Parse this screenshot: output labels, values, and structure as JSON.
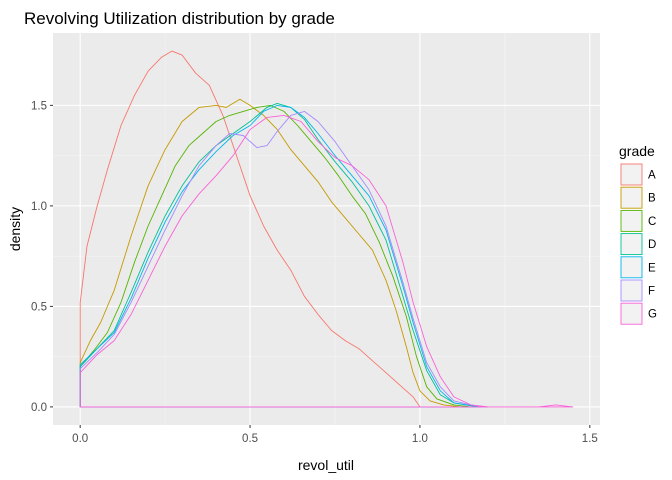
{
  "chart_data": {
    "type": "line",
    "title": "Revolving Utilization distribution by grade",
    "xlabel": "revol_util",
    "ylabel": "density",
    "xlim": [
      -0.08,
      1.53
    ],
    "ylim": [
      -0.09,
      1.86
    ],
    "x_ticks": [
      "0.0",
      "0.5",
      "1.0",
      "1.5"
    ],
    "y_ticks": [
      "0.0",
      "0.5",
      "1.0",
      "1.5"
    ],
    "grid": true,
    "legend": {
      "title": "grade",
      "position": "right"
    },
    "series": [
      {
        "name": "A",
        "color": "#F8766D",
        "points": [
          [
            0,
            0.52
          ],
          [
            0.02,
            0.8
          ],
          [
            0.05,
            1.0
          ],
          [
            0.08,
            1.18
          ],
          [
            0.12,
            1.4
          ],
          [
            0.16,
            1.55
          ],
          [
            0.2,
            1.67
          ],
          [
            0.24,
            1.74
          ],
          [
            0.27,
            1.77
          ],
          [
            0.3,
            1.75
          ],
          [
            0.34,
            1.66
          ],
          [
            0.38,
            1.6
          ],
          [
            0.42,
            1.45
          ],
          [
            0.46,
            1.25
          ],
          [
            0.5,
            1.05
          ],
          [
            0.54,
            0.9
          ],
          [
            0.58,
            0.78
          ],
          [
            0.62,
            0.68
          ],
          [
            0.66,
            0.55
          ],
          [
            0.7,
            0.46
          ],
          [
            0.74,
            0.38
          ],
          [
            0.78,
            0.33
          ],
          [
            0.82,
            0.29
          ],
          [
            0.86,
            0.23
          ],
          [
            0.9,
            0.17
          ],
          [
            0.94,
            0.11
          ],
          [
            0.98,
            0.05
          ],
          [
            1.0,
            0.0
          ]
        ]
      },
      {
        "name": "B",
        "color": "#C49A00",
        "points": [
          [
            0,
            0.22
          ],
          [
            0.03,
            0.33
          ],
          [
            0.06,
            0.42
          ],
          [
            0.1,
            0.58
          ],
          [
            0.15,
            0.85
          ],
          [
            0.2,
            1.1
          ],
          [
            0.25,
            1.28
          ],
          [
            0.3,
            1.42
          ],
          [
            0.35,
            1.49
          ],
          [
            0.4,
            1.5
          ],
          [
            0.43,
            1.49
          ],
          [
            0.47,
            1.53
          ],
          [
            0.5,
            1.5
          ],
          [
            0.54,
            1.45
          ],
          [
            0.58,
            1.38
          ],
          [
            0.62,
            1.28
          ],
          [
            0.66,
            1.2
          ],
          [
            0.7,
            1.12
          ],
          [
            0.74,
            1.02
          ],
          [
            0.78,
            0.94
          ],
          [
            0.82,
            0.86
          ],
          [
            0.86,
            0.78
          ],
          [
            0.9,
            0.63
          ],
          [
            0.93,
            0.48
          ],
          [
            0.96,
            0.3
          ],
          [
            0.98,
            0.17
          ],
          [
            1.0,
            0.08
          ],
          [
            1.03,
            0.03
          ],
          [
            1.07,
            0.01
          ],
          [
            1.12,
            0.0
          ]
        ]
      },
      {
        "name": "C",
        "color": "#53B400",
        "points": [
          [
            0,
            0.2
          ],
          [
            0.04,
            0.28
          ],
          [
            0.08,
            0.37
          ],
          [
            0.12,
            0.52
          ],
          [
            0.16,
            0.72
          ],
          [
            0.2,
            0.9
          ],
          [
            0.24,
            1.05
          ],
          [
            0.28,
            1.2
          ],
          [
            0.32,
            1.3
          ],
          [
            0.36,
            1.36
          ],
          [
            0.4,
            1.42
          ],
          [
            0.44,
            1.45
          ],
          [
            0.48,
            1.47
          ],
          [
            0.52,
            1.49
          ],
          [
            0.56,
            1.5
          ],
          [
            0.6,
            1.47
          ],
          [
            0.64,
            1.4
          ],
          [
            0.68,
            1.32
          ],
          [
            0.72,
            1.24
          ],
          [
            0.76,
            1.15
          ],
          [
            0.8,
            1.05
          ],
          [
            0.84,
            0.96
          ],
          [
            0.88,
            0.82
          ],
          [
            0.92,
            0.65
          ],
          [
            0.96,
            0.45
          ],
          [
            0.99,
            0.25
          ],
          [
            1.02,
            0.1
          ],
          [
            1.05,
            0.04
          ],
          [
            1.1,
            0.01
          ],
          [
            1.15,
            0.0
          ]
        ]
      },
      {
        "name": "D",
        "color": "#00C094",
        "points": [
          [
            0,
            0.2
          ],
          [
            0.05,
            0.29
          ],
          [
            0.1,
            0.38
          ],
          [
            0.15,
            0.57
          ],
          [
            0.2,
            0.77
          ],
          [
            0.25,
            0.95
          ],
          [
            0.3,
            1.1
          ],
          [
            0.35,
            1.22
          ],
          [
            0.4,
            1.3
          ],
          [
            0.45,
            1.36
          ],
          [
            0.5,
            1.42
          ],
          [
            0.55,
            1.49
          ],
          [
            0.58,
            1.51
          ],
          [
            0.62,
            1.49
          ],
          [
            0.66,
            1.43
          ],
          [
            0.7,
            1.33
          ],
          [
            0.75,
            1.22
          ],
          [
            0.8,
            1.12
          ],
          [
            0.85,
            1.0
          ],
          [
            0.9,
            0.83
          ],
          [
            0.95,
            0.55
          ],
          [
            0.98,
            0.38
          ],
          [
            1.02,
            0.18
          ],
          [
            1.06,
            0.06
          ],
          [
            1.1,
            0.02
          ],
          [
            1.17,
            0.0
          ]
        ]
      },
      {
        "name": "E",
        "color": "#00B6EB",
        "points": [
          [
            0,
            0.21
          ],
          [
            0.05,
            0.29
          ],
          [
            0.1,
            0.37
          ],
          [
            0.15,
            0.54
          ],
          [
            0.2,
            0.74
          ],
          [
            0.25,
            0.92
          ],
          [
            0.3,
            1.07
          ],
          [
            0.35,
            1.18
          ],
          [
            0.4,
            1.27
          ],
          [
            0.45,
            1.35
          ],
          [
            0.5,
            1.4
          ],
          [
            0.54,
            1.47
          ],
          [
            0.58,
            1.5
          ],
          [
            0.62,
            1.49
          ],
          [
            0.66,
            1.44
          ],
          [
            0.7,
            1.36
          ],
          [
            0.75,
            1.25
          ],
          [
            0.8,
            1.15
          ],
          [
            0.85,
            1.05
          ],
          [
            0.9,
            0.88
          ],
          [
            0.95,
            0.6
          ],
          [
            0.98,
            0.42
          ],
          [
            1.02,
            0.2
          ],
          [
            1.06,
            0.08
          ],
          [
            1.1,
            0.02
          ],
          [
            1.18,
            0.0
          ]
        ]
      },
      {
        "name": "F",
        "color": "#A58AFF",
        "points": [
          [
            0,
            0.19
          ],
          [
            0.05,
            0.27
          ],
          [
            0.1,
            0.36
          ],
          [
            0.15,
            0.52
          ],
          [
            0.2,
            0.7
          ],
          [
            0.25,
            0.88
          ],
          [
            0.3,
            1.05
          ],
          [
            0.35,
            1.2
          ],
          [
            0.4,
            1.3
          ],
          [
            0.44,
            1.36
          ],
          [
            0.48,
            1.35
          ],
          [
            0.52,
            1.29
          ],
          [
            0.55,
            1.3
          ],
          [
            0.58,
            1.37
          ],
          [
            0.62,
            1.45
          ],
          [
            0.66,
            1.47
          ],
          [
            0.7,
            1.42
          ],
          [
            0.75,
            1.32
          ],
          [
            0.8,
            1.2
          ],
          [
            0.85,
            1.08
          ],
          [
            0.9,
            0.9
          ],
          [
            0.95,
            0.62
          ],
          [
            0.98,
            0.44
          ],
          [
            1.02,
            0.22
          ],
          [
            1.06,
            0.1
          ],
          [
            1.1,
            0.03
          ],
          [
            1.15,
            0.01
          ],
          [
            1.2,
            0.0
          ]
        ]
      },
      {
        "name": "G",
        "color": "#FB61D7",
        "points": [
          [
            0,
            0.17
          ],
          [
            0.05,
            0.26
          ],
          [
            0.1,
            0.33
          ],
          [
            0.15,
            0.46
          ],
          [
            0.2,
            0.63
          ],
          [
            0.25,
            0.8
          ],
          [
            0.3,
            0.95
          ],
          [
            0.35,
            1.06
          ],
          [
            0.4,
            1.15
          ],
          [
            0.45,
            1.25
          ],
          [
            0.5,
            1.38
          ],
          [
            0.55,
            1.44
          ],
          [
            0.6,
            1.45
          ],
          [
            0.65,
            1.42
          ],
          [
            0.7,
            1.32
          ],
          [
            0.75,
            1.24
          ],
          [
            0.8,
            1.2
          ],
          [
            0.85,
            1.13
          ],
          [
            0.9,
            1.0
          ],
          [
            0.95,
            0.72
          ],
          [
            0.98,
            0.52
          ],
          [
            1.02,
            0.3
          ],
          [
            1.06,
            0.15
          ],
          [
            1.1,
            0.05
          ],
          [
            1.15,
            0.01
          ],
          [
            1.2,
            0.0
          ],
          [
            1.35,
            0.0
          ],
          [
            1.4,
            0.01
          ],
          [
            1.45,
            0.0
          ]
        ]
      }
    ]
  }
}
